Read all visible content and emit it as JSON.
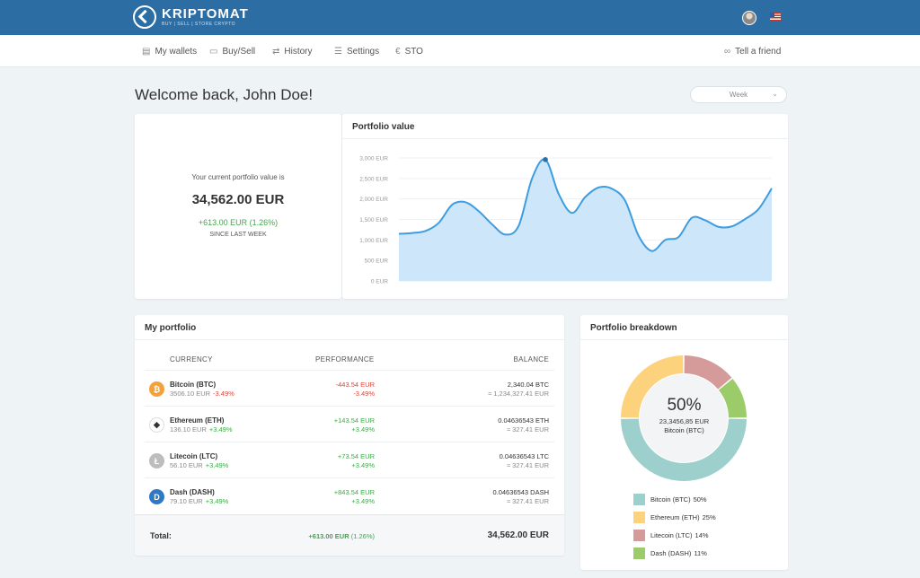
{
  "brand": {
    "name": "KRIPTOMAT",
    "tagline": "BUY | SELL | STORE CRYPTO"
  },
  "nav": {
    "items": [
      {
        "label": "My wallets",
        "icon": "wallet-icon"
      },
      {
        "label": "Buy/Sell",
        "icon": "card-icon"
      },
      {
        "label": "History",
        "icon": "swap-icon"
      },
      {
        "label": "Settings",
        "icon": "sliders-icon"
      },
      {
        "label": "STO",
        "icon": "euro-icon"
      }
    ],
    "tell_friend": "Tell a friend"
  },
  "welcome": "Welcome back, John Doe!",
  "period_select": {
    "value": "Week"
  },
  "summary": {
    "label": "Your current portfolio value is",
    "value": "34,562.00 EUR",
    "change": "+613.00 EUR (1.26%)",
    "since": "SINCE LAST WEEK"
  },
  "portfolio_value": {
    "title": "Portfolio value",
    "chart_data": {
      "type": "area",
      "title": "Portfolio value",
      "ylim": [
        0,
        3000
      ],
      "y_ticks": [
        "0 EUR",
        "500 EUR",
        "1,000 EUR",
        "1,500 EUR",
        "2,000 EUR",
        "2,500 EUR",
        "3,000 EUR"
      ],
      "grid": true,
      "color": "#3d9de0",
      "fill": "#cde6fa",
      "values": [
        1150,
        1170,
        1220,
        1420,
        1860,
        1920,
        1700,
        1380,
        1130,
        1350,
        2500,
        2960,
        2120,
        1660,
        2050,
        2280,
        2250,
        1950,
        1100,
        730,
        1000,
        1070,
        1540,
        1480,
        1320,
        1330,
        1510,
        1750,
        2260
      ],
      "highlight_index": 11
    }
  },
  "my_portfolio": {
    "title": "My portfolio",
    "headers": {
      "currency": "CURRENCY",
      "performance": "PERFORMANCE",
      "balance": "BALANCE"
    },
    "rows": [
      {
        "name": "Bitcoin (BTC)",
        "price": "3506.10 EUR",
        "price_change": "-3.49%",
        "perf_amount": "-443.54 EUR",
        "perf_pct": "-3.49%",
        "balance": "2,340.04 BTC",
        "balance_eur": "≈ 1,234,327.41 EUR",
        "icon": "bitcoin-icon",
        "glyph": "₿",
        "color": "#f2a13b",
        "trend": "negative"
      },
      {
        "name": "Ethereum (ETH)",
        "price": "136.10 EUR",
        "price_change": "+3.49%",
        "perf_amount": "+143.54 EUR",
        "perf_pct": "+3.49%",
        "balance": "0.04636543 ETH",
        "balance_eur": "≈ 327.41 EUR",
        "icon": "ethereum-icon",
        "glyph": "◆",
        "color": "#ffffff",
        "trend": "positive"
      },
      {
        "name": "Litecoin (LTC)",
        "price": "56.10 EUR",
        "price_change": "+3.49%",
        "perf_amount": "+73.54 EUR",
        "perf_pct": "+3.49%",
        "balance": "0.04636543 LTC",
        "balance_eur": "≈ 327.41 EUR",
        "icon": "litecoin-icon",
        "glyph": "Ł",
        "color": "#bdbdbd",
        "trend": "positive"
      },
      {
        "name": "Dash (DASH)",
        "price": "79.10 EUR",
        "price_change": "+3.49%",
        "perf_amount": "+843.54 EUR",
        "perf_pct": "+3.49%",
        "balance": "0.04636543 DASH",
        "balance_eur": "≈ 327.41 EUR",
        "icon": "dash-icon",
        "glyph": "D",
        "color": "#2f78c4",
        "trend": "positive"
      }
    ],
    "total": {
      "label": "Total:",
      "perf_amount": "+613.00 EUR",
      "perf_pct": "(1.26%)",
      "balance": "34,562.00 EUR"
    }
  },
  "breakdown": {
    "title": "Portfolio breakdown",
    "center": {
      "pct": "50%",
      "amount": "23,3456,85 EUR",
      "name": "Bitcoin (BTC)"
    },
    "chart_data": {
      "type": "pie",
      "donut": true,
      "slices": [
        {
          "label": "Bitcoin (BTC)",
          "pct_label": "50%",
          "value": 50,
          "color": "#9dcfcc"
        },
        {
          "label": "Ethereum (ETH)",
          "pct_label": "25%",
          "value": 25,
          "color": "#fcd27c"
        },
        {
          "label": "Litecoin (LTC)",
          "pct_label": "14%",
          "value": 14,
          "color": "#d59a9a"
        },
        {
          "label": "Dash (DASH)",
          "pct_label": "11%",
          "value": 11,
          "color": "#9ccb6a"
        }
      ]
    }
  }
}
